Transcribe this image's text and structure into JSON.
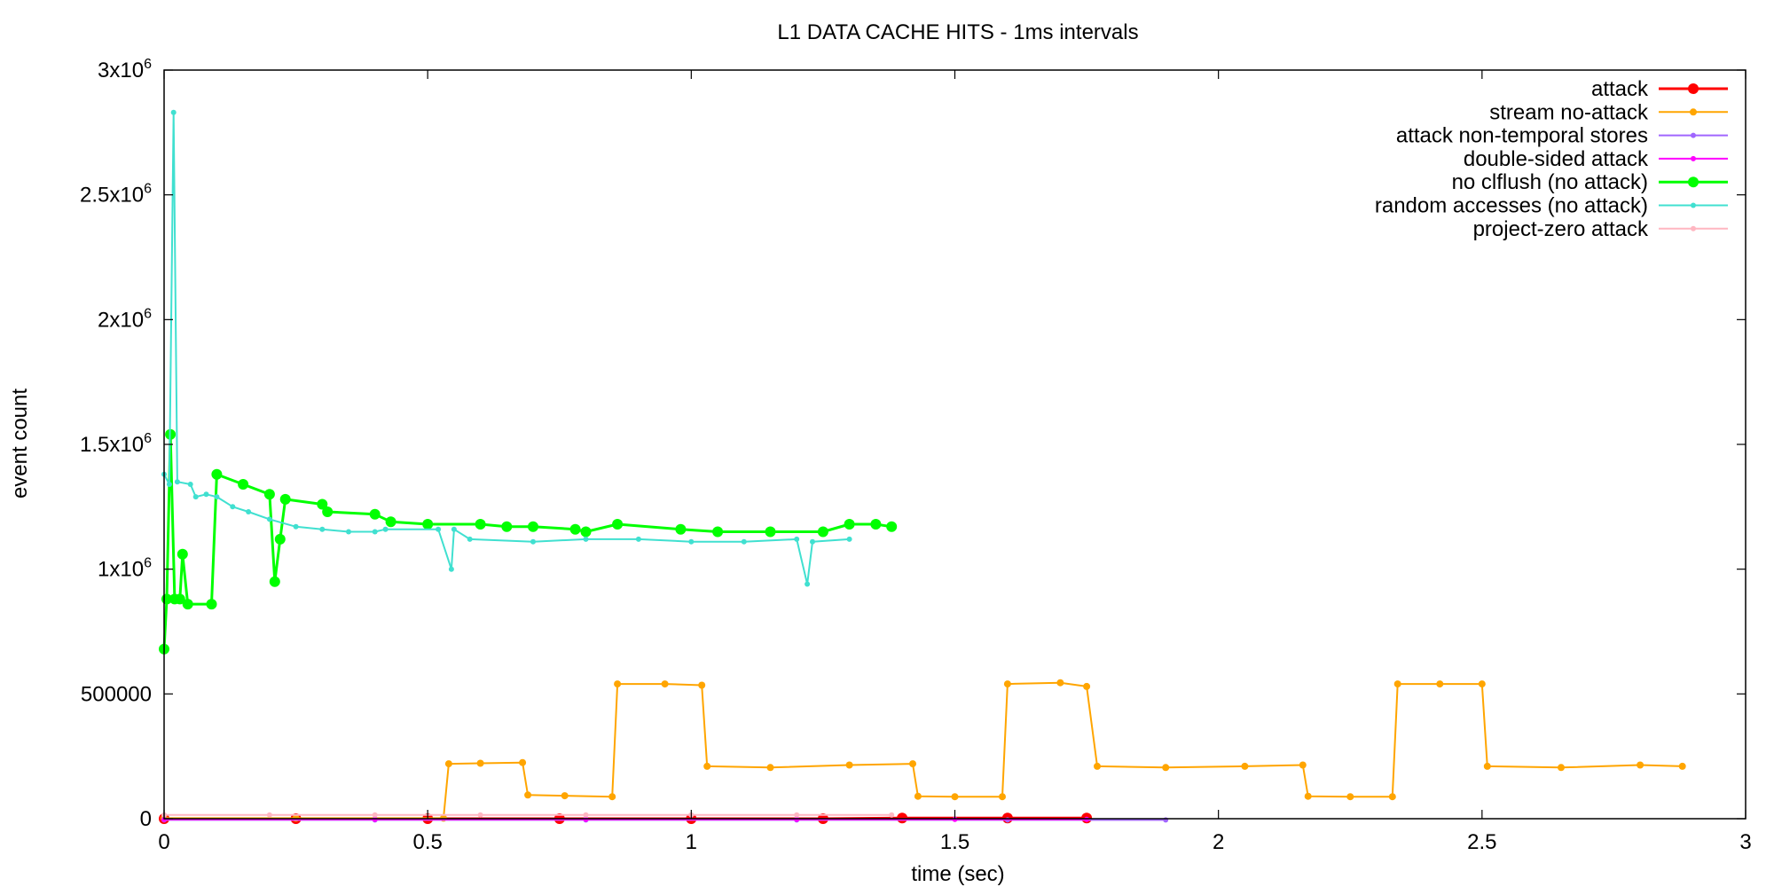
{
  "chart_data": {
    "type": "line",
    "title": "L1 DATA CACHE HITS - 1ms intervals",
    "xlabel": "time (sec)",
    "ylabel": "event count",
    "xlim": [
      0,
      3
    ],
    "ylim": [
      0,
      3000000
    ],
    "x_ticks": [
      {
        "value": 0,
        "label": "0"
      },
      {
        "value": 0.5,
        "label": "0.5"
      },
      {
        "value": 1,
        "label": "1"
      },
      {
        "value": 1.5,
        "label": "1.5"
      },
      {
        "value": 2,
        "label": "2"
      },
      {
        "value": 2.5,
        "label": "2.5"
      },
      {
        "value": 3,
        "label": "3"
      }
    ],
    "y_ticks": [
      {
        "value": 0,
        "label": "0",
        "sup": ""
      },
      {
        "value": 500000,
        "label": "500000",
        "sup": ""
      },
      {
        "value": 1000000,
        "label": "1x10",
        "sup": "6"
      },
      {
        "value": 1500000,
        "label": "1.5x10",
        "sup": "6"
      },
      {
        "value": 2000000,
        "label": "2x10",
        "sup": "6"
      },
      {
        "value": 2500000,
        "label": "2.5x10",
        "sup": "6"
      },
      {
        "value": 3000000,
        "label": "3x10",
        "sup": "6"
      }
    ],
    "grid": false,
    "legend_position": "top-right",
    "series": [
      {
        "name": "attack",
        "color": "#ff0000",
        "line_width": 3,
        "marker_r": 6,
        "points": [
          [
            0,
            0
          ],
          [
            0.25,
            0
          ],
          [
            0.5,
            0
          ],
          [
            0.75,
            0
          ],
          [
            1.0,
            0
          ],
          [
            1.25,
            0
          ],
          [
            1.4,
            3000
          ],
          [
            1.6,
            3000
          ],
          [
            1.75,
            3000
          ]
        ]
      },
      {
        "name": "stream no-attack",
        "color": "#ffa500",
        "line_width": 2,
        "marker_r": 4,
        "points": [
          [
            0,
            2000
          ],
          [
            0.25,
            2000
          ],
          [
            0.53,
            2000
          ],
          [
            0.54,
            220000
          ],
          [
            0.6,
            222000
          ],
          [
            0.68,
            225000
          ],
          [
            0.69,
            95000
          ],
          [
            0.76,
            92000
          ],
          [
            0.85,
            88000
          ],
          [
            0.86,
            540000
          ],
          [
            0.95,
            540000
          ],
          [
            1.02,
            535000
          ],
          [
            1.03,
            210000
          ],
          [
            1.15,
            205000
          ],
          [
            1.3,
            215000
          ],
          [
            1.42,
            220000
          ],
          [
            1.43,
            90000
          ],
          [
            1.5,
            88000
          ],
          [
            1.59,
            88000
          ],
          [
            1.6,
            540000
          ],
          [
            1.7,
            545000
          ],
          [
            1.75,
            530000
          ],
          [
            1.77,
            210000
          ],
          [
            1.9,
            205000
          ],
          [
            2.05,
            210000
          ],
          [
            2.16,
            215000
          ],
          [
            2.17,
            90000
          ],
          [
            2.25,
            88000
          ],
          [
            2.33,
            88000
          ],
          [
            2.34,
            540000
          ],
          [
            2.42,
            540000
          ],
          [
            2.5,
            540000
          ],
          [
            2.51,
            210000
          ],
          [
            2.65,
            205000
          ],
          [
            2.8,
            215000
          ],
          [
            2.88,
            210000
          ]
        ]
      },
      {
        "name": "attack non-temporal stores",
        "color": "#a066ff",
        "line_width": 2,
        "marker_r": 3,
        "points": [
          [
            0,
            -5000
          ],
          [
            0.4,
            -5000
          ],
          [
            0.8,
            -5000
          ],
          [
            1.2,
            -5000
          ],
          [
            1.6,
            -5000
          ],
          [
            1.9,
            -5000
          ]
        ]
      },
      {
        "name": "double-sided attack",
        "color": "#ff00ff",
        "line_width": 2,
        "marker_r": 3,
        "points": [
          [
            0,
            -3000
          ],
          [
            0.4,
            -3000
          ],
          [
            0.8,
            -3000
          ],
          [
            1.2,
            -3000
          ],
          [
            1.5,
            -3000
          ],
          [
            1.75,
            -3000
          ]
        ]
      },
      {
        "name": "no clflush (no attack)",
        "color": "#00ff00",
        "line_width": 3,
        "marker_r": 6,
        "points": [
          [
            0,
            680000
          ],
          [
            0.005,
            880000
          ],
          [
            0.012,
            1540000
          ],
          [
            0.02,
            880000
          ],
          [
            0.03,
            880000
          ],
          [
            0.035,
            1060000
          ],
          [
            0.045,
            860000
          ],
          [
            0.09,
            860000
          ],
          [
            0.1,
            1380000
          ],
          [
            0.15,
            1340000
          ],
          [
            0.2,
            1300000
          ],
          [
            0.21,
            950000
          ],
          [
            0.22,
            1120000
          ],
          [
            0.23,
            1280000
          ],
          [
            0.3,
            1260000
          ],
          [
            0.31,
            1230000
          ],
          [
            0.4,
            1220000
          ],
          [
            0.43,
            1190000
          ],
          [
            0.5,
            1180000
          ],
          [
            0.6,
            1180000
          ],
          [
            0.65,
            1170000
          ],
          [
            0.7,
            1170000
          ],
          [
            0.78,
            1160000
          ],
          [
            0.8,
            1150000
          ],
          [
            0.86,
            1180000
          ],
          [
            0.98,
            1160000
          ],
          [
            1.05,
            1150000
          ],
          [
            1.15,
            1150000
          ],
          [
            1.25,
            1150000
          ],
          [
            1.3,
            1180000
          ],
          [
            1.35,
            1180000
          ],
          [
            1.38,
            1170000
          ]
        ]
      },
      {
        "name": "random accesses (no attack)",
        "color": "#40e0d0",
        "line_width": 2,
        "marker_r": 3,
        "points": [
          [
            0,
            1380000
          ],
          [
            0.01,
            1340000
          ],
          [
            0.018,
            2830000
          ],
          [
            0.025,
            1350000
          ],
          [
            0.05,
            1340000
          ],
          [
            0.06,
            1290000
          ],
          [
            0.08,
            1300000
          ],
          [
            0.1,
            1290000
          ],
          [
            0.13,
            1250000
          ],
          [
            0.16,
            1230000
          ],
          [
            0.2,
            1200000
          ],
          [
            0.25,
            1170000
          ],
          [
            0.3,
            1160000
          ],
          [
            0.35,
            1150000
          ],
          [
            0.4,
            1150000
          ],
          [
            0.42,
            1160000
          ],
          [
            0.52,
            1160000
          ],
          [
            0.545,
            1000000
          ],
          [
            0.55,
            1160000
          ],
          [
            0.58,
            1120000
          ],
          [
            0.7,
            1110000
          ],
          [
            0.8,
            1120000
          ],
          [
            0.9,
            1120000
          ],
          [
            1.0,
            1110000
          ],
          [
            1.1,
            1110000
          ],
          [
            1.2,
            1120000
          ],
          [
            1.22,
            940000
          ],
          [
            1.23,
            1110000
          ],
          [
            1.3,
            1120000
          ]
        ]
      },
      {
        "name": "project-zero attack",
        "color": "#ffb6c1",
        "line_width": 2,
        "marker_r": 3,
        "points": [
          [
            0,
            15000
          ],
          [
            0.2,
            15000
          ],
          [
            0.4,
            15000
          ],
          [
            0.6,
            15000
          ],
          [
            0.8,
            15000
          ],
          [
            1.0,
            15000
          ],
          [
            1.2,
            15000
          ],
          [
            1.38,
            15000
          ]
        ]
      }
    ]
  }
}
